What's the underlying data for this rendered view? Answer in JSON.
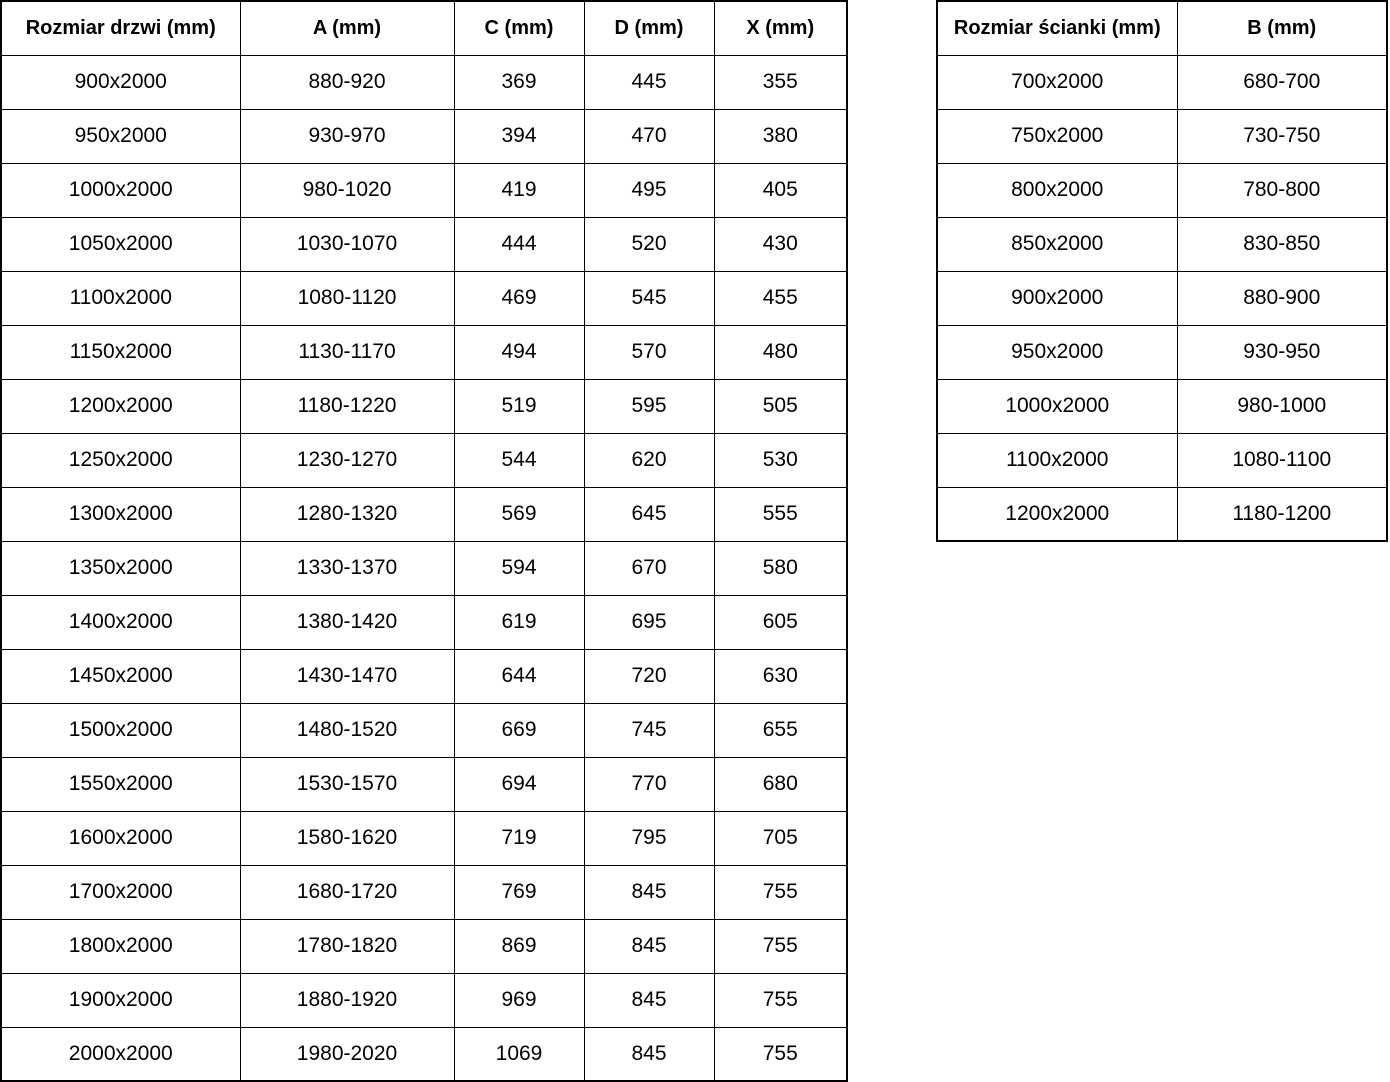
{
  "colors": {
    "background": "#ffffff",
    "border": "#000000",
    "text": "#000000"
  },
  "doors_table": {
    "headers": [
      "Rozmiar drzwi (mm)",
      "A (mm)",
      "C (mm)",
      "D (mm)",
      "X (mm)"
    ],
    "rows": [
      [
        "900x2000",
        "880-920",
        "369",
        "445",
        "355"
      ],
      [
        "950x2000",
        "930-970",
        "394",
        "470",
        "380"
      ],
      [
        "1000x2000",
        "980-1020",
        "419",
        "495",
        "405"
      ],
      [
        "1050x2000",
        "1030-1070",
        "444",
        "520",
        "430"
      ],
      [
        "1100x2000",
        "1080-1120",
        "469",
        "545",
        "455"
      ],
      [
        "1150x2000",
        "1130-1170",
        "494",
        "570",
        "480"
      ],
      [
        "1200x2000",
        "1180-1220",
        "519",
        "595",
        "505"
      ],
      [
        "1250x2000",
        "1230-1270",
        "544",
        "620",
        "530"
      ],
      [
        "1300x2000",
        "1280-1320",
        "569",
        "645",
        "555"
      ],
      [
        "1350x2000",
        "1330-1370",
        "594",
        "670",
        "580"
      ],
      [
        "1400x2000",
        "1380-1420",
        "619",
        "695",
        "605"
      ],
      [
        "1450x2000",
        "1430-1470",
        "644",
        "720",
        "630"
      ],
      [
        "1500x2000",
        "1480-1520",
        "669",
        "745",
        "655"
      ],
      [
        "1550x2000",
        "1530-1570",
        "694",
        "770",
        "680"
      ],
      [
        "1600x2000",
        "1580-1620",
        "719",
        "795",
        "705"
      ],
      [
        "1700x2000",
        "1680-1720",
        "769",
        "845",
        "755"
      ],
      [
        "1800x2000",
        "1780-1820",
        "869",
        "845",
        "755"
      ],
      [
        "1900x2000",
        "1880-1920",
        "969",
        "845",
        "755"
      ],
      [
        "2000x2000",
        "1980-2020",
        "1069",
        "845",
        "755"
      ]
    ]
  },
  "walls_table": {
    "headers": [
      "Rozmiar ścianki (mm)",
      "B (mm)"
    ],
    "rows": [
      [
        "700x2000",
        "680-700"
      ],
      [
        "750x2000",
        "730-750"
      ],
      [
        "800x2000",
        "780-800"
      ],
      [
        "850x2000",
        "830-850"
      ],
      [
        "900x2000",
        "880-900"
      ],
      [
        "950x2000",
        "930-950"
      ],
      [
        "1000x2000",
        "980-1000"
      ],
      [
        "1100x2000",
        "1080-1100"
      ],
      [
        "1200x2000",
        "1180-1200"
      ]
    ]
  }
}
